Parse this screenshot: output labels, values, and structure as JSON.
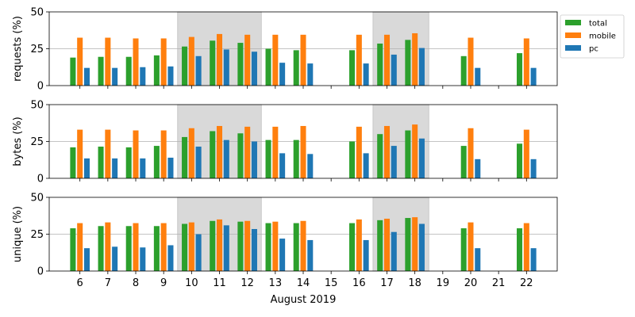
{
  "chart_data": {
    "type": "bar",
    "xlabel": "August 2019",
    "x_ticks": [
      "6",
      "7",
      "8",
      "9",
      "10",
      "11",
      "12",
      "13",
      "14",
      "15",
      "16",
      "17",
      "18",
      "19",
      "20",
      "21",
      "22"
    ],
    "highlighted_ranges": [
      [
        10,
        12
      ],
      [
        17,
        18
      ]
    ],
    "legend": {
      "placement": "upper-right-outside",
      "entries": [
        {
          "name": "total",
          "color": "#2ca02c"
        },
        {
          "name": "mobile",
          "color": "#ff7f0e"
        },
        {
          "name": "pc",
          "color": "#1f77b4"
        }
      ]
    },
    "panels": [
      {
        "ylabel": "requests (%)",
        "ylim": [
          0,
          50
        ],
        "yticks": [
          "0",
          "25",
          "50"
        ],
        "grid_y": 25,
        "series": [
          {
            "name": "total",
            "values": [
              19,
              19.5,
              19.5,
              20.5,
              26.5,
              30.5,
              29,
              25,
              24,
              null,
              24,
              28.5,
              31,
              null,
              20,
              null,
              22
            ]
          },
          {
            "name": "mobile",
            "values": [
              32.5,
              32.5,
              32,
              32,
              33,
              35,
              34.5,
              34.5,
              34.5,
              null,
              34.5,
              34.5,
              35.5,
              null,
              32.5,
              null,
              32
            ]
          },
          {
            "name": "pc",
            "values": [
              12,
              12,
              12.5,
              13,
              20,
              24.5,
              23,
              15.5,
              15,
              null,
              15,
              21,
              25.5,
              null,
              12,
              null,
              12
            ]
          }
        ]
      },
      {
        "ylabel": "bytes (%)",
        "ylim": [
          0,
          50
        ],
        "yticks": [
          "0",
          "25",
          "50"
        ],
        "grid_y": 25,
        "series": [
          {
            "name": "total",
            "values": [
              21,
              21.5,
              21,
              22,
              28,
              32,
              30.5,
              26,
              26,
              null,
              25,
              30,
              32.5,
              null,
              22,
              null,
              23.5
            ]
          },
          {
            "name": "mobile",
            "values": [
              33,
              33,
              32.5,
              32.5,
              34,
              35.5,
              35,
              35,
              35.5,
              null,
              35,
              35.5,
              36.5,
              null,
              34,
              null,
              33
            ]
          },
          {
            "name": "pc",
            "values": [
              13.5,
              13.5,
              13.5,
              14,
              21.5,
              26,
              25,
              17,
              16.5,
              null,
              17,
              22,
              27,
              null,
              13,
              null,
              13
            ]
          }
        ]
      },
      {
        "ylabel": "unique (%)",
        "ylim": [
          0,
          50
        ],
        "yticks": [
          "0",
          "25",
          "50"
        ],
        "grid_y": 25,
        "series": [
          {
            "name": "total",
            "values": [
              29,
              30.5,
              30.5,
              30.5,
              32,
              34,
              33.5,
              32.5,
              32.5,
              null,
              32.5,
              34.5,
              36,
              null,
              29,
              null,
              29
            ]
          },
          {
            "name": "mobile",
            "values": [
              32.5,
              33,
              32.5,
              32.5,
              33,
              35,
              34,
              33.5,
              34,
              null,
              35,
              35.5,
              36.5,
              null,
              33,
              null,
              32.5
            ]
          },
          {
            "name": "pc",
            "values": [
              15.5,
              16.5,
              16,
              17.5,
              25,
              31,
              28.5,
              22,
              21,
              null,
              21,
              26.5,
              32,
              null,
              15.5,
              null,
              15.5
            ]
          }
        ]
      }
    ]
  }
}
